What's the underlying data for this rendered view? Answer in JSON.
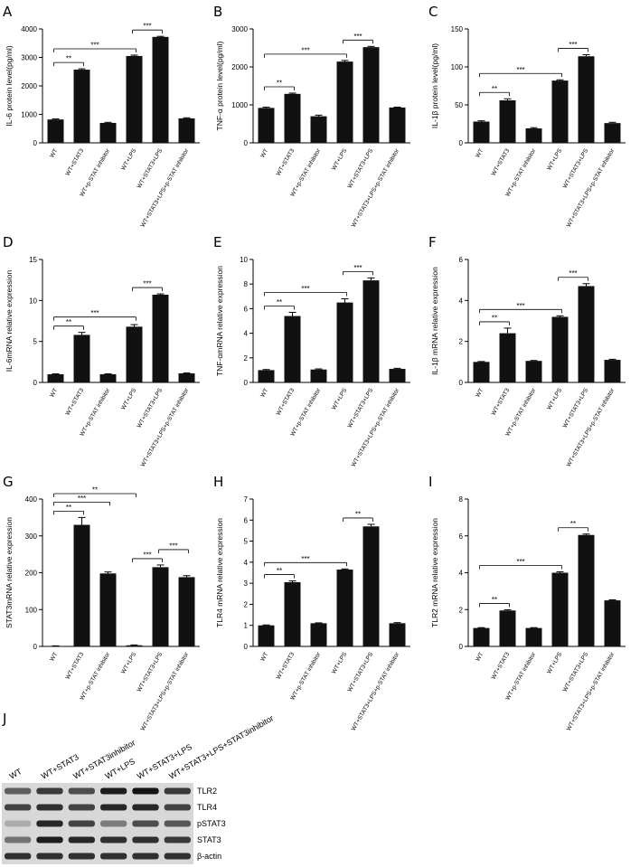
{
  "categories": [
    "WT",
    "WT+STAT3",
    "WT+p-STAT inhibitor",
    "WT+LPS",
    "WT+STAT3+LPS",
    "WT+STAT3+LPS+p-STAT inhibitor"
  ],
  "chart_data": [
    {
      "letter": "A",
      "type": "bar",
      "ylabel": "IL-6 protein level(pg/ml)",
      "ylim": [
        0,
        4000
      ],
      "yticks": [
        0,
        1000,
        2000,
        3000,
        4000
      ],
      "values": [
        820,
        2570,
        700,
        3050,
        3720,
        860
      ],
      "errors": [
        20,
        30,
        20,
        30,
        20,
        20
      ],
      "significance": [
        {
          "from": 0,
          "to": 1,
          "label": "**"
        },
        {
          "from": 0,
          "to": 3,
          "label": "***"
        },
        {
          "from": 3,
          "to": 4,
          "label": "***"
        }
      ]
    },
    {
      "letter": "B",
      "type": "bar",
      "ylabel": "TNF-α protein level(pg/ml)",
      "ylim": [
        0,
        3000
      ],
      "yticks": [
        0,
        1000,
        2000,
        3000
      ],
      "values": [
        920,
        1290,
        700,
        2140,
        2520,
        930
      ],
      "errors": [
        20,
        20,
        30,
        30,
        20,
        10
      ],
      "significance": [
        {
          "from": 0,
          "to": 1,
          "label": "**"
        },
        {
          "from": 0,
          "to": 3,
          "label": "***"
        },
        {
          "from": 3,
          "to": 4,
          "label": "***"
        }
      ]
    },
    {
      "letter": "C",
      "type": "bar",
      "ylabel": "IL-1β protein level(pg/ml)",
      "ylim": [
        0,
        150
      ],
      "yticks": [
        0,
        50,
        100,
        150
      ],
      "values": [
        28,
        56,
        19,
        82,
        114,
        26
      ],
      "errors": [
        1,
        2,
        1,
        1,
        2,
        1
      ],
      "significance": [
        {
          "from": 0,
          "to": 1,
          "label": "**"
        },
        {
          "from": 0,
          "to": 3,
          "label": "***"
        },
        {
          "from": 3,
          "to": 4,
          "label": "***"
        }
      ]
    },
    {
      "letter": "D",
      "type": "bar",
      "ylabel": "IL-6mRNA relative expression",
      "ylim": [
        0,
        15
      ],
      "yticks": [
        0,
        5,
        10,
        15
      ],
      "values": [
        1.0,
        5.8,
        1.0,
        6.8,
        10.7,
        1.1
      ],
      "errors": [
        0.05,
        0.3,
        0.05,
        0.25,
        0.1,
        0.05
      ],
      "significance": [
        {
          "from": 0,
          "to": 1,
          "label": "**"
        },
        {
          "from": 0,
          "to": 3,
          "label": "***"
        },
        {
          "from": 3,
          "to": 4,
          "label": "***"
        }
      ]
    },
    {
      "letter": "E",
      "type": "bar",
      "ylabel": "TNF-αmRNA relative expression",
      "ylim": [
        0,
        10
      ],
      "yticks": [
        0,
        2,
        4,
        6,
        8,
        10
      ],
      "values": [
        1.0,
        5.4,
        1.05,
        6.5,
        8.3,
        1.1
      ],
      "errors": [
        0.05,
        0.3,
        0.05,
        0.3,
        0.2,
        0.05
      ],
      "significance": [
        {
          "from": 0,
          "to": 1,
          "label": "**"
        },
        {
          "from": 0,
          "to": 3,
          "label": "***"
        },
        {
          "from": 3,
          "to": 4,
          "label": "***"
        }
      ]
    },
    {
      "letter": "F",
      "type": "bar",
      "ylabel": "IL-1β mRNA relative expression",
      "ylim": [
        0,
        6
      ],
      "yticks": [
        0,
        2,
        4,
        6
      ],
      "values": [
        1.0,
        2.4,
        1.05,
        3.2,
        4.7,
        1.1
      ],
      "errors": [
        0.02,
        0.25,
        0.02,
        0.05,
        0.12,
        0.03
      ],
      "significance": [
        {
          "from": 0,
          "to": 1,
          "label": "**"
        },
        {
          "from": 0,
          "to": 3,
          "label": "***"
        },
        {
          "from": 3,
          "to": 4,
          "label": "***"
        }
      ]
    },
    {
      "letter": "G",
      "type": "bar",
      "ylabel": "STAT3mRNA relative expression",
      "ylim": [
        0,
        400
      ],
      "yticks": [
        0,
        100,
        200,
        300,
        400
      ],
      "values": [
        1,
        330,
        198,
        3,
        215,
        188
      ],
      "errors": [
        0.5,
        20,
        4,
        1,
        6,
        4
      ],
      "significance": [
        {
          "from": 0,
          "to": 1,
          "label": "**"
        },
        {
          "from": 0,
          "to": 2,
          "label": "***"
        },
        {
          "from": 0,
          "to": 3,
          "label": "**"
        },
        {
          "from": 3,
          "to": 4,
          "label": "***"
        },
        {
          "from": 4,
          "to": 5,
          "label": "***"
        }
      ]
    },
    {
      "letter": "H",
      "type": "bar",
      "ylabel": "TLR4 mRNA relative expression",
      "ylim": [
        0,
        7
      ],
      "yticks": [
        0,
        1,
        2,
        3,
        4,
        5,
        6,
        7
      ],
      "values": [
        1.0,
        3.05,
        1.1,
        3.65,
        5.7,
        1.1
      ],
      "errors": [
        0.02,
        0.06,
        0.02,
        0.03,
        0.1,
        0.03
      ],
      "significance": [
        {
          "from": 0,
          "to": 1,
          "label": "**"
        },
        {
          "from": 0,
          "to": 3,
          "label": "***"
        },
        {
          "from": 3,
          "to": 4,
          "label": "**"
        }
      ]
    },
    {
      "letter": "I",
      "type": "bar",
      "ylabel": "TLR2 mRNA relative expression",
      "ylim": [
        0,
        8
      ],
      "yticks": [
        0,
        2,
        4,
        6,
        8
      ],
      "values": [
        1.0,
        1.95,
        1.0,
        4.0,
        6.05,
        2.5
      ],
      "errors": [
        0.02,
        0.04,
        0.02,
        0.05,
        0.05,
        0.03
      ],
      "significance": [
        {
          "from": 0,
          "to": 1,
          "label": "**"
        },
        {
          "from": 0,
          "to": 3,
          "label": "***"
        },
        {
          "from": 3,
          "to": 4,
          "label": "**"
        }
      ]
    }
  ],
  "blot": {
    "letter": "J",
    "lanes": [
      "WT",
      "WT+STAT3",
      "WT+STAT3inhibitor",
      "WT+LPS",
      "WT+STAT3+LPS",
      "WT+STAT3+LPS+STAT3inhibitor"
    ],
    "proteins": [
      "TLR2",
      "TLR4",
      "pSTAT3",
      "STAT3",
      "β-actin"
    ],
    "intensity": [
      [
        0.55,
        0.75,
        0.65,
        0.9,
        0.95,
        0.75
      ],
      [
        0.7,
        0.8,
        0.7,
        0.85,
        0.85,
        0.7
      ],
      [
        0.15,
        0.85,
        0.7,
        0.4,
        0.65,
        0.6
      ],
      [
        0.45,
        0.9,
        0.85,
        0.8,
        0.8,
        0.75
      ],
      [
        0.8,
        0.8,
        0.8,
        0.8,
        0.8,
        0.8
      ]
    ]
  }
}
